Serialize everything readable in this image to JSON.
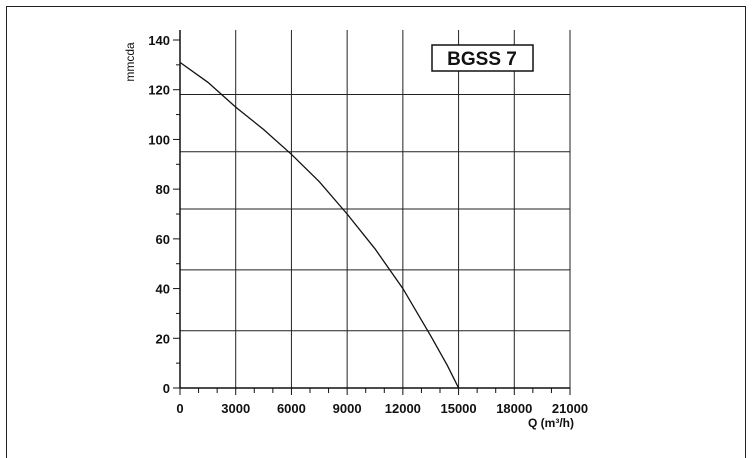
{
  "chart_data": {
    "type": "line",
    "title": "BGSS 7",
    "xlabel": "Q (m³/h)",
    "ylabel": "mmcda",
    "xlim": [
      0,
      21000
    ],
    "ylim": [
      0,
      140
    ],
    "x_ticks": [
      0,
      3000,
      6000,
      9000,
      12000,
      15000,
      18000,
      21000
    ],
    "y_ticks": [
      0,
      20,
      40,
      60,
      80,
      100,
      120,
      140
    ],
    "x_tick_labels": [
      "0",
      "3000",
      "6000",
      "9000",
      "12000",
      "15000",
      "18000",
      "21000"
    ],
    "y_tick_labels": [
      "0",
      "20",
      "40",
      "60",
      "80",
      "100",
      "120",
      "140"
    ],
    "grid": true,
    "series": [
      {
        "x": [
          0,
          1500,
          3000,
          4500,
          6000,
          7500,
          9000,
          10500,
          12000,
          13500,
          14400,
          15000
        ],
        "y": [
          131,
          123,
          113,
          104,
          94,
          83,
          70,
          56,
          40,
          21,
          9,
          0
        ]
      }
    ]
  },
  "colors": {
    "grid": "#222222",
    "axis": "#111111",
    "curve": "#111111",
    "background": "#ffffff"
  }
}
